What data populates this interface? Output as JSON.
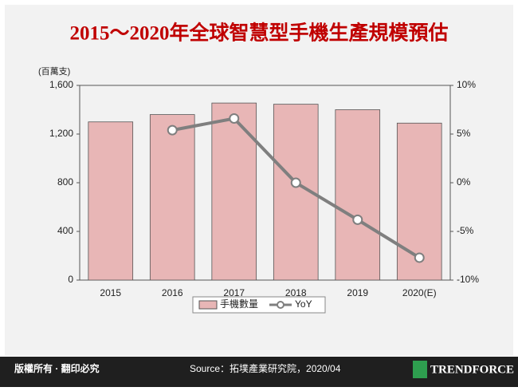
{
  "chart_data": {
    "type": "bar_line",
    "title": "2015～2020年全球智慧型手機生產規模預估",
    "y_axis_label": "(百萬支)",
    "categories": [
      "2015",
      "2016",
      "2017",
      "2018",
      "2019",
      "2020(E)"
    ],
    "series": [
      {
        "name": "手機數量",
        "color": "#e8b6b6",
        "values": [
          1300,
          1360,
          1455,
          1445,
          1400,
          1290
        ]
      },
      {
        "name": "YoY",
        "color": "#7f7f7f",
        "axis": "y2",
        "values": [
          null,
          5.4,
          6.6,
          0,
          -3.8,
          -7.7
        ]
      }
    ],
    "ylim": [
      0,
      1600
    ],
    "yticks": [
      0,
      400,
      800,
      {
        "value": 1200,
        "label": "1,200"
      },
      {
        "value": 1600,
        "label": "1,600"
      }
    ],
    "y2lim": [
      -10,
      10
    ],
    "y2ticks": [
      {
        "value": -10,
        "label": "-10%"
      },
      {
        "value": -5,
        "label": "-5%"
      },
      {
        "value": 0,
        "label": "0%"
      },
      {
        "value": 5,
        "label": "5%"
      },
      {
        "value": 10,
        "label": "10%"
      }
    ],
    "legend": "bottom"
  },
  "footer": {
    "copyright": "版權所有 · 翻印必究",
    "source": "Source：拓墣產業研究院，2020/04",
    "brand": "TRENDFORCE"
  }
}
